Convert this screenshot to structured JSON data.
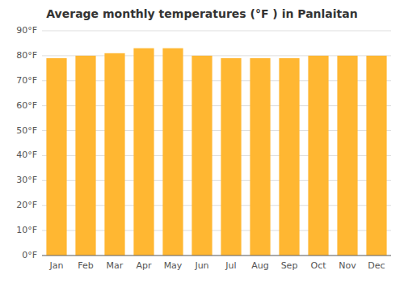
{
  "chart_data": {
    "type": "bar",
    "title": "Average monthly temperatures (°F ) in Panlaitan",
    "categories": [
      "Jan",
      "Feb",
      "Mar",
      "Apr",
      "May",
      "Jun",
      "Jul",
      "Aug",
      "Sep",
      "Oct",
      "Nov",
      "Dec"
    ],
    "values": [
      79,
      80,
      81,
      83,
      83,
      80,
      79,
      79,
      79,
      80,
      80,
      80
    ],
    "color": "#FFB732",
    "ylim": [
      0,
      90
    ],
    "yticks": [
      {
        "value": 0,
        "label": "0°F"
      },
      {
        "value": 10,
        "label": "10°F"
      },
      {
        "value": 20,
        "label": "20°F"
      },
      {
        "value": 30,
        "label": "30°F"
      },
      {
        "value": 40,
        "label": "40°F"
      },
      {
        "value": 50,
        "label": "50°F"
      },
      {
        "value": 60,
        "label": "60°F"
      },
      {
        "value": 70,
        "label": "70°F"
      },
      {
        "value": 80,
        "label": "80°F"
      },
      {
        "value": 90,
        "label": "90°F"
      }
    ],
    "grid": true
  }
}
